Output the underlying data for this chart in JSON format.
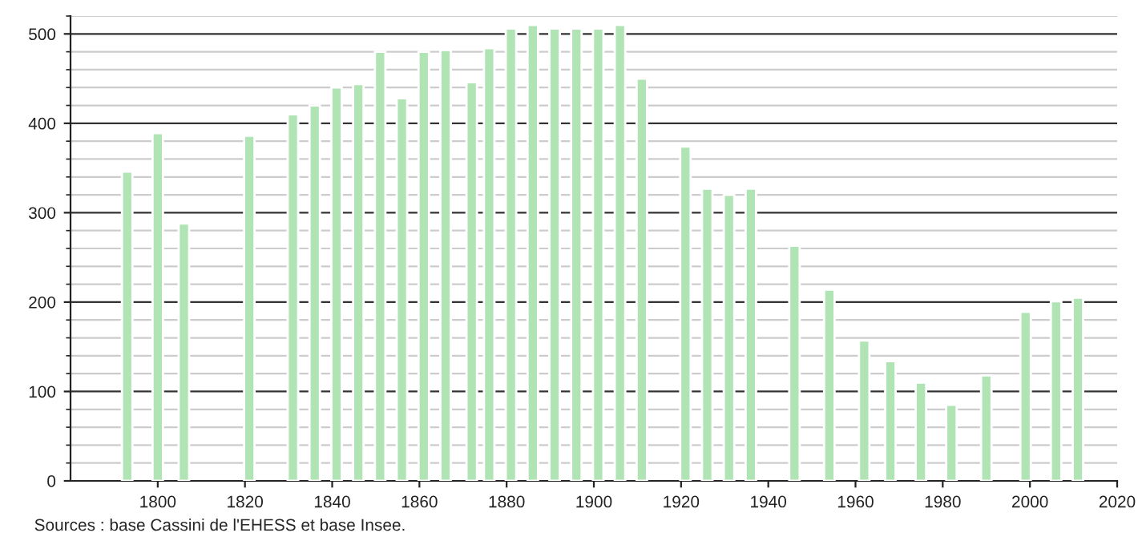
{
  "chart_data": {
    "type": "bar",
    "x": [
      1793,
      1800,
      1806,
      1821,
      1831,
      1836,
      1841,
      1846,
      1851,
      1856,
      1861,
      1866,
      1872,
      1876,
      1881,
      1886,
      1891,
      1896,
      1901,
      1906,
      1911,
      1921,
      1926,
      1931,
      1936,
      1946,
      1954,
      1962,
      1968,
      1975,
      1982,
      1990,
      1999,
      2006,
      2011
    ],
    "values": [
      346,
      389,
      288,
      386,
      410,
      420,
      440,
      444,
      480,
      428,
      480,
      482,
      446,
      484,
      506,
      510,
      506,
      506,
      506,
      510,
      450,
      374,
      327,
      320,
      327,
      263,
      214,
      157,
      134,
      110,
      85,
      118,
      189,
      201,
      205
    ],
    "color": "#b0e4b4",
    "xlim": [
      1780,
      2020
    ],
    "xticks": [
      1800,
      1820,
      1840,
      1860,
      1880,
      1900,
      1920,
      1940,
      1960,
      1980,
      2000,
      2020
    ],
    "ylim": [
      0,
      520
    ],
    "yticks": [
      0,
      100,
      200,
      300,
      400,
      500
    ],
    "grid": "y",
    "annotations": [
      "Sources : base Cassini de l'EHESS et base Insee."
    ]
  }
}
